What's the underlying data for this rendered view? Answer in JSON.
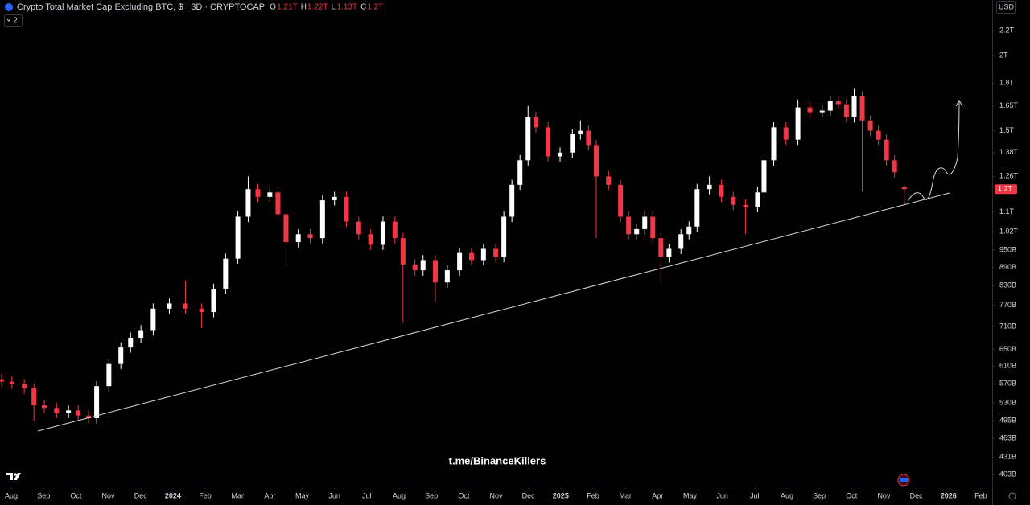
{
  "chart_data": {
    "type": "candlestick",
    "log_scale": true,
    "grid": false,
    "up_color": "#ffffff",
    "down_color": "#f23645",
    "xlim": [
      -0.35,
      30.35
    ],
    "xticks": [
      {
        "value": 0,
        "label": "Aug"
      },
      {
        "value": 1,
        "label": "Sep"
      },
      {
        "value": 2,
        "label": "Oct"
      },
      {
        "value": 3,
        "label": "Nov"
      },
      {
        "value": 4,
        "label": "Dec"
      },
      {
        "value": 5,
        "label": "2024"
      },
      {
        "value": 6,
        "label": "Feb"
      },
      {
        "value": 7,
        "label": "Mar"
      },
      {
        "value": 8,
        "label": "Apr"
      },
      {
        "value": 9,
        "label": "May"
      },
      {
        "value": 10,
        "label": "Jun"
      },
      {
        "value": 11,
        "label": "Jul"
      },
      {
        "value": 12,
        "label": "Aug"
      },
      {
        "value": 13,
        "label": "Sep"
      },
      {
        "value": 14,
        "label": "Oct"
      },
      {
        "value": 15,
        "label": "Nov"
      },
      {
        "value": 16,
        "label": "Dec"
      },
      {
        "value": 17,
        "label": "2025"
      },
      {
        "value": 18,
        "label": "Feb"
      },
      {
        "value": 19,
        "label": "Mar"
      },
      {
        "value": 20,
        "label": "Apr"
      },
      {
        "value": 21,
        "label": "May"
      },
      {
        "value": 22,
        "label": "Jun"
      },
      {
        "value": 23,
        "label": "Jul"
      },
      {
        "value": 24,
        "label": "Aug"
      },
      {
        "value": 25,
        "label": "Sep"
      },
      {
        "value": 26,
        "label": "Oct"
      },
      {
        "value": 27,
        "label": "Nov"
      },
      {
        "value": 28,
        "label": "Dec"
      },
      {
        "value": 29,
        "label": "2026"
      },
      {
        "value": 30,
        "label": "Feb"
      }
    ],
    "ylim": [
      385,
      2473
    ],
    "yticks": [
      {
        "value": 2200,
        "label": "2.2T"
      },
      {
        "value": 2000,
        "label": "2T"
      },
      {
        "value": 1800,
        "label": "1.8T"
      },
      {
        "value": 1650,
        "label": "1.65T"
      },
      {
        "value": 1500,
        "label": "1.5T"
      },
      {
        "value": 1380,
        "label": "1.38T"
      },
      {
        "value": 1260,
        "label": "1.26T"
      },
      {
        "value": 1100,
        "label": "1.1T"
      },
      {
        "value": 1020,
        "label": "1.02T"
      },
      {
        "value": 950,
        "label": "950B"
      },
      {
        "value": 890,
        "label": "890B"
      },
      {
        "value": 830,
        "label": "830B"
      },
      {
        "value": 770,
        "label": "770B"
      },
      {
        "value": 710,
        "label": "710B"
      },
      {
        "value": 650,
        "label": "650B"
      },
      {
        "value": 610,
        "label": "610B"
      },
      {
        "value": 570,
        "label": "570B"
      },
      {
        "value": 530,
        "label": "530B"
      },
      {
        "value": 495,
        "label": "495B"
      },
      {
        "value": 463,
        "label": "463B"
      },
      {
        "value": 431,
        "label": "431B"
      },
      {
        "value": 403,
        "label": "403B"
      }
    ],
    "last_price": {
      "value": 1200,
      "label": "1.2T"
    },
    "x": [
      -0.3,
      0.02,
      0.4,
      0.7,
      1.02,
      1.4,
      1.77,
      2.07,
      2.39,
      2.64,
      3.02,
      3.39,
      3.69,
      4.01,
      4.39,
      4.89,
      5.39,
      5.89,
      6.26,
      6.63,
      7.01,
      7.33,
      7.63,
      8.0,
      8.25,
      8.5,
      8.88,
      9.25,
      9.63,
      10.0,
      10.37,
      10.75,
      11.12,
      11.5,
      11.87,
      12.12,
      12.49,
      12.74,
      13.12,
      13.49,
      13.87,
      14.24,
      14.61,
      14.99,
      15.24,
      15.49,
      15.74,
      15.99,
      16.23,
      16.61,
      16.98,
      17.36,
      17.61,
      17.86,
      18.1,
      18.48,
      18.85,
      19.1,
      19.35,
      19.6,
      19.85,
      20.1,
      20.35,
      20.72,
      20.97,
      21.22,
      21.6,
      21.97,
      22.34,
      22.72,
      23.09,
      23.29,
      23.59,
      23.97,
      24.34,
      24.71,
      25.09,
      25.34,
      25.59,
      25.84,
      26.08,
      26.33,
      26.58,
      26.83,
      27.08,
      27.33,
      27.63
    ],
    "open": [
      580,
      575,
      570,
      560,
      525,
      520,
      510,
      515,
      505,
      500,
      565,
      615,
      655,
      680,
      700,
      760,
      775,
      760,
      750,
      820,
      920,
      1080,
      1200,
      1165,
      1185,
      1090,
      980,
      1010,
      995,
      1150,
      1165,
      1060,
      1010,
      970,
      1060,
      995,
      900,
      880,
      915,
      840,
      880,
      940,
      915,
      955,
      925,
      1080,
      1220,
      1340,
      1580,
      1520,
      1360,
      1380,
      1480,
      1500,
      1420,
      1260,
      1220,
      1080,
      1010,
      1030,
      1080,
      995,
      925,
      955,
      1010,
      1040,
      1200,
      1220,
      1165,
      1130,
      1120,
      1185,
      1340,
      1520,
      1450,
      1640,
      1610,
      1620,
      1680,
      1660,
      1580,
      1710,
      1560,
      1500,
      1450,
      1340,
      1210
    ],
    "high": [
      592,
      587,
      581,
      571,
      536,
      530,
      525,
      525,
      515,
      576,
      627,
      668,
      694,
      714,
      775,
      790,
      845,
      775,
      836,
      938,
      1102,
      1260,
      1224,
      1209,
      1209,
      1112,
      1030,
      1030,
      1173,
      1188,
      1188,
      1081,
      1030,
      1081,
      1081,
      1015,
      918,
      933,
      933,
      898,
      959,
      959,
      974,
      974,
      1102,
      1244,
      1367,
      1650,
      1612,
      1550,
      1408,
      1510,
      1560,
      1530,
      1448,
      1285,
      1244,
      1102,
      1051,
      1102,
      1102,
      1015,
      974,
      1030,
      1061,
      1224,
      1260,
      1244,
      1188,
      1153,
      1209,
      1367,
      1550,
      1550,
      1690,
      1673,
      1652,
      1714,
      1714,
      1693,
      1760,
      1744,
      1591,
      1530,
      1479,
      1367,
      1220
    ],
    "low": [
      564,
      559,
      549,
      495,
      510,
      500,
      500,
      495,
      490,
      490,
      554,
      603,
      642,
      666,
      686,
      745,
      745,
      705,
      735,
      804,
      902,
      1058,
      1142,
      1142,
      1068,
      900,
      960,
      975,
      975,
      1127,
      1039,
      990,
      951,
      951,
      975,
      720,
      862,
      862,
      780,
      823,
      862,
      897,
      897,
      907,
      907,
      1058,
      1196,
      1313,
      1490,
      1333,
      1333,
      1352,
      1450,
      1392,
      995,
      1196,
      1058,
      990,
      990,
      1009,
      975,
      830,
      907,
      936,
      990,
      1019,
      1176,
      1142,
      1107,
      1010,
      1098,
      1161,
      1313,
      1421,
      1421,
      1578,
      1578,
      1588,
      1627,
      1548,
      1548,
      1190,
      1470,
      1421,
      1313,
      1254,
      1130
    ],
    "close": [
      575,
      570,
      560,
      525,
      520,
      510,
      515,
      505,
      500,
      565,
      615,
      655,
      680,
      700,
      760,
      775,
      760,
      750,
      820,
      920,
      1080,
      1200,
      1165,
      1185,
      1090,
      980,
      1010,
      995,
      1150,
      1165,
      1060,
      1010,
      970,
      1060,
      995,
      900,
      880,
      915,
      840,
      880,
      940,
      915,
      955,
      925,
      1080,
      1220,
      1340,
      1580,
      1520,
      1360,
      1380,
      1480,
      1500,
      1420,
      1260,
      1220,
      1080,
      1010,
      1030,
      1080,
      995,
      925,
      955,
      1010,
      1040,
      1200,
      1220,
      1165,
      1130,
      1120,
      1185,
      1340,
      1520,
      1450,
      1640,
      1610,
      1620,
      1680,
      1660,
      1580,
      1710,
      1560,
      1500,
      1450,
      1340,
      1280,
      1200
    ]
  },
  "header": {
    "title": "Crypto Total Market Cap Excluding BTC, $ · 3D · CRYPTOCAP",
    "ohlc": [
      {
        "label": "O",
        "value": "1.21T"
      },
      {
        "label": "H",
        "value": "1.22T"
      },
      {
        "label": "L",
        "value": "1.13T"
      },
      {
        "label": "C",
        "value": "1.2T"
      }
    ],
    "indicator_count": "2",
    "currency": "USD"
  },
  "watermark": "t.me/BinanceKillers"
}
